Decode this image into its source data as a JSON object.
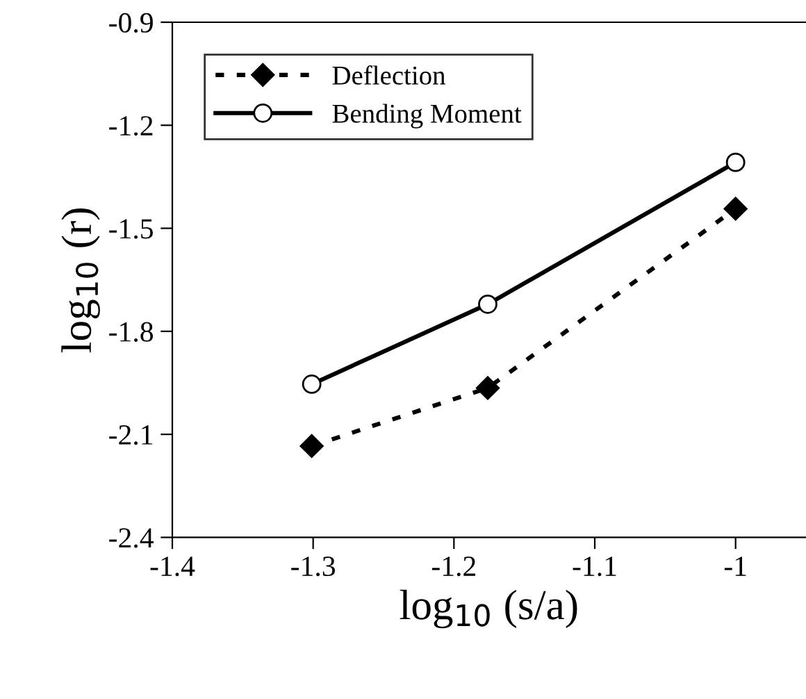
{
  "chart_data": {
    "type": "line",
    "xlabel": "log$_{10}$ (s/a)",
    "ylabel": "log$_{10}$ (r)",
    "x": [
      -1.301,
      -1.176,
      -1.0
    ],
    "series": [
      {
        "name": "Deflection",
        "color": "#000000",
        "values": [
          -2.134,
          -1.965,
          -1.443
        ],
        "marker": "diamond",
        "line_style": "dotted"
      },
      {
        "name": "Bending Moment",
        "color": "#000000",
        "values": [
          -1.954,
          -1.721,
          -1.308
        ],
        "marker": "circle",
        "line_style": "solid"
      }
    ],
    "xlim": [
      -1.4,
      -0.95
    ],
    "xticks": [
      -1.4,
      -1.3,
      -1.2,
      -1.1,
      -1
    ],
    "ylim": [
      -2.4,
      -0.9
    ],
    "yticks": [
      -2.4,
      -2.1,
      -1.8,
      -1.5,
      -1.2,
      -0.9
    ],
    "grid": false,
    "legend": "top left"
  }
}
